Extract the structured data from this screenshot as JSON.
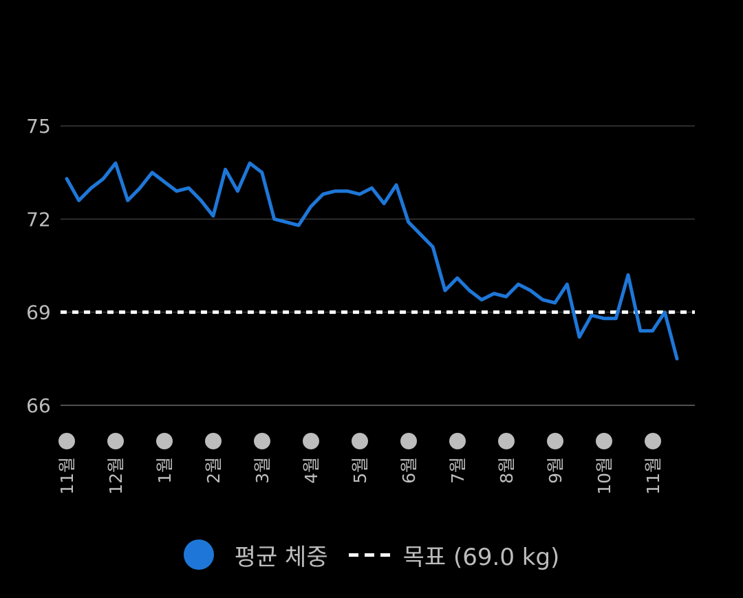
{
  "chart_data": {
    "type": "line",
    "ylim": [
      66,
      75
    ],
    "y_ticks": [
      "75",
      "72",
      "69",
      "66"
    ],
    "y_tick_values": [
      75,
      72,
      69,
      66
    ],
    "grid": true,
    "x_month_labels": [
      "11월",
      "12월",
      "1월",
      "2월",
      "3월",
      "4월",
      "5월",
      "6월",
      "7월",
      "8월",
      "9월",
      "10월",
      "11월"
    ],
    "series": [
      {
        "name": "평균 체중",
        "color": "#1e77d8",
        "values": [
          73.3,
          72.6,
          73.0,
          73.3,
          73.8,
          72.6,
          73.0,
          73.5,
          73.2,
          72.9,
          73.0,
          72.6,
          72.1,
          73.6,
          72.9,
          73.8,
          73.5,
          72.0,
          71.9,
          71.8,
          72.4,
          72.8,
          72.9,
          72.9,
          72.8,
          73.0,
          72.5,
          73.1,
          71.9,
          71.5,
          71.1,
          69.7,
          70.1,
          69.7,
          69.4,
          69.6,
          69.5,
          69.9,
          69.7,
          69.4,
          69.3,
          69.9,
          68.2,
          68.9,
          68.8,
          68.8,
          70.2,
          68.4,
          68.4,
          69.0,
          67.5
        ]
      }
    ],
    "goal": {
      "value": 69.0,
      "color": "#ffffff"
    },
    "legend": {
      "placement": "bottom",
      "series_label": "평균 체중",
      "goal_label": "목표 (69.0 kg)"
    }
  }
}
